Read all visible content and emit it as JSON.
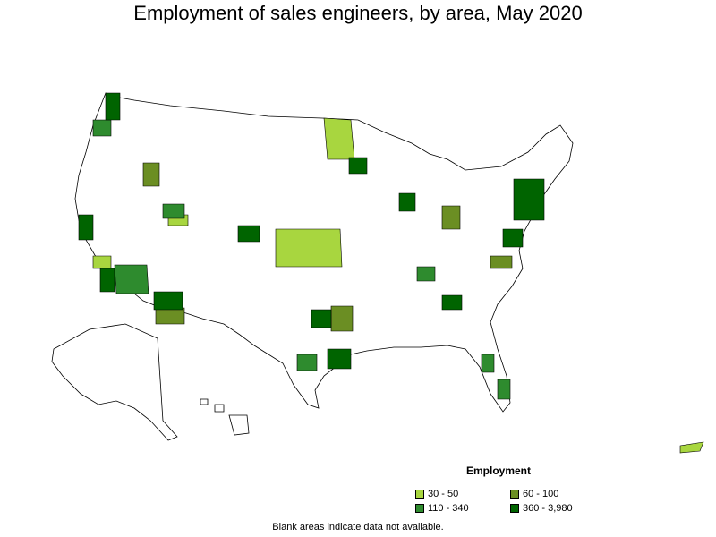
{
  "title": "Employment of sales engineers, by area, May 2020",
  "legend": {
    "title": "Employment",
    "items": [
      {
        "label": "30 - 50",
        "color": "#a8d63f"
      },
      {
        "label": "60 - 100",
        "color": "#6b8e23"
      },
      {
        "label": "110 - 340",
        "color": "#2e8b2e"
      },
      {
        "label": "360 - 3,980",
        "color": "#006400"
      }
    ]
  },
  "footnote": "Blank areas indicate data not available.",
  "colors": {
    "outline": "#000000",
    "background": "#ffffff"
  }
}
